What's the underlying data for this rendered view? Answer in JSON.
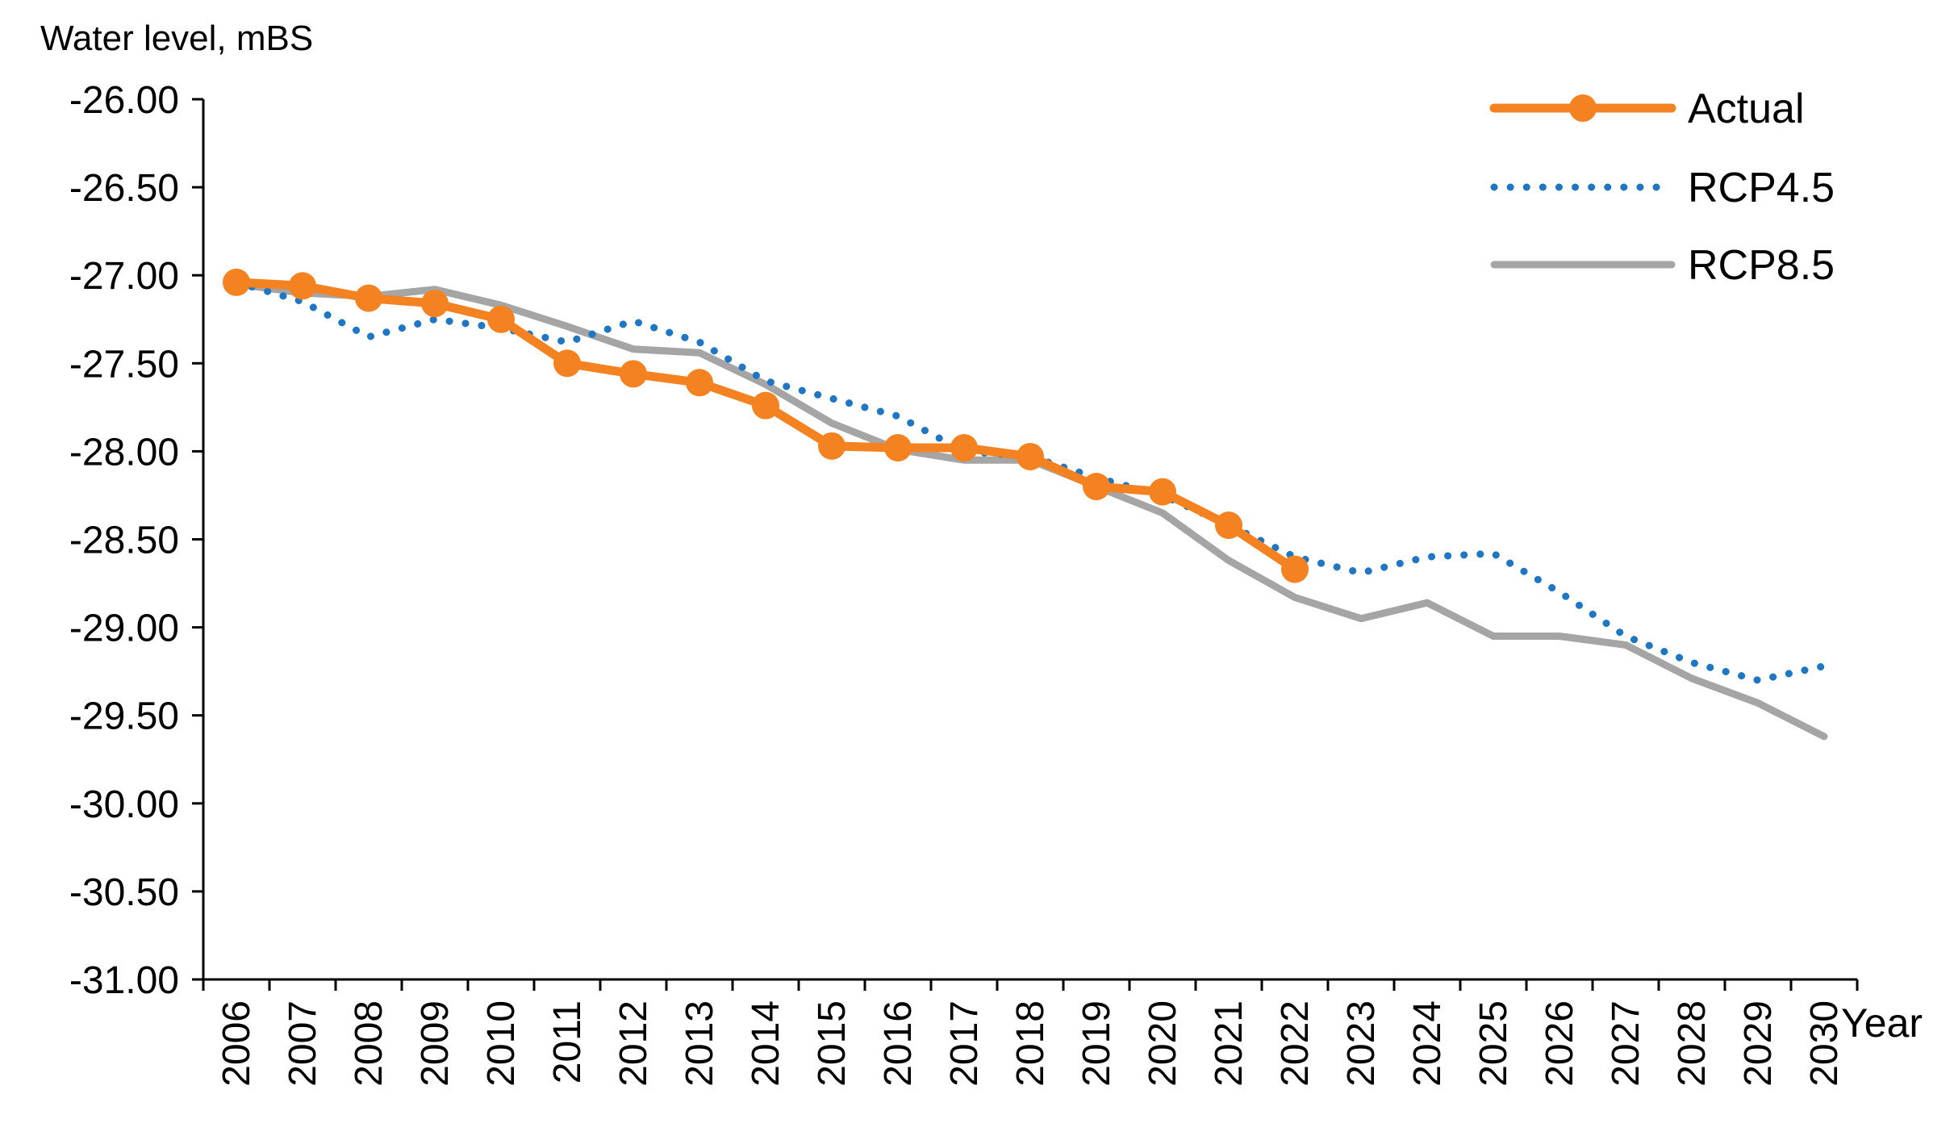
{
  "chart_data": {
    "type": "line",
    "title": "",
    "ylabel": "Water level, mBS",
    "xlabel": "Year",
    "ylim": [
      -31.0,
      -26.0
    ],
    "y_ticks": [
      -26.0,
      -26.5,
      -27.0,
      -27.5,
      -28.0,
      -28.5,
      -29.0,
      -29.5,
      -30.0,
      -30.5,
      -31.0
    ],
    "y_tick_labels": [
      "-26.00",
      "-26.50",
      "-27.00",
      "-27.50",
      "-28.00",
      "-28.50",
      "-29.00",
      "-29.50",
      "-30.00",
      "-30.50",
      "-31.00"
    ],
    "categories": [
      "2006",
      "2007",
      "2008",
      "2009",
      "2010",
      "2011",
      "2012",
      "2013",
      "2014",
      "2015",
      "2016",
      "2017",
      "2018",
      "2019",
      "2020",
      "2021",
      "2022",
      "2023",
      "2024",
      "2025",
      "2026",
      "2027",
      "2028",
      "2029",
      "2030"
    ],
    "grid": false,
    "legend_position": "top-right",
    "series": [
      {
        "name": "Actual",
        "color": "#F58220",
        "style": "solid-markers",
        "values": [
          -27.04,
          -27.06,
          -27.13,
          -27.16,
          -27.25,
          -27.5,
          -27.56,
          -27.61,
          -27.74,
          -27.97,
          -27.98,
          -27.98,
          -28.03,
          -28.2,
          -28.23,
          -28.42,
          -28.67,
          null,
          null,
          null,
          null,
          null,
          null,
          null,
          null
        ]
      },
      {
        "name": "RCP4.5",
        "color": "#1F77C4",
        "style": "dotted",
        "values": [
          -27.04,
          -27.15,
          -27.35,
          -27.25,
          -27.3,
          -27.38,
          -27.26,
          -27.38,
          -27.6,
          -27.7,
          -27.8,
          -28.0,
          -28.03,
          -28.15,
          -28.25,
          -28.42,
          -28.6,
          -28.69,
          -28.6,
          -28.58,
          -28.8,
          -29.05,
          -29.2,
          -29.3,
          -29.22
        ]
      },
      {
        "name": "RCP8.5",
        "color": "#A5A5A5",
        "style": "solid",
        "values": [
          -27.05,
          -27.1,
          -27.12,
          -27.08,
          -27.17,
          -27.29,
          -27.42,
          -27.44,
          -27.62,
          -27.84,
          -27.99,
          -28.05,
          -28.05,
          -28.2,
          -28.35,
          -28.62,
          -28.83,
          -28.95,
          -28.86,
          -29.05,
          -29.05,
          -29.1,
          -29.29,
          -29.43,
          -29.62
        ]
      }
    ]
  }
}
